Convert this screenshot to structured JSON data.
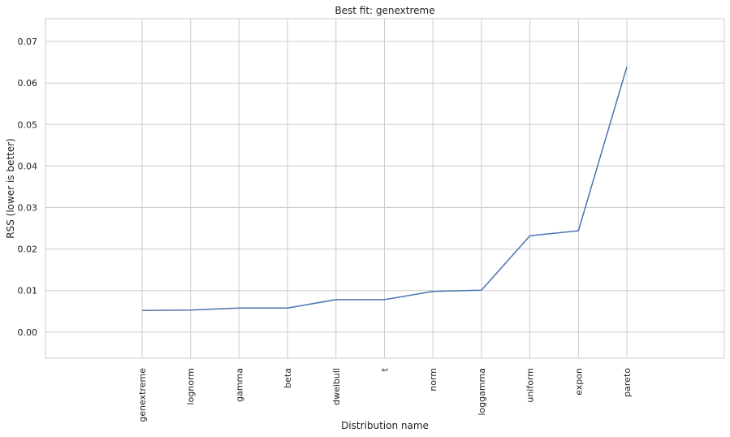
{
  "chart_data": {
    "type": "line",
    "title": "Best fit: genextreme",
    "xlabel": "Distribution name",
    "ylabel": "RSS (lower is better)",
    "categories": [
      "genextreme",
      "lognorm",
      "gamma",
      "beta",
      "dweibull",
      "t",
      "norm",
      "loggamma",
      "uniform",
      "expon",
      "pareto"
    ],
    "values": [
      0.0052,
      0.0053,
      0.0058,
      0.0058,
      0.0078,
      0.0078,
      0.0098,
      0.0101,
      0.0232,
      0.0244,
      0.0639
    ],
    "yticks": [
      "0.00",
      "0.01",
      "0.02",
      "0.03",
      "0.04",
      "0.05",
      "0.06",
      "0.07"
    ],
    "ylim": [
      -0.0063,
      0.0755
    ],
    "grid": true,
    "color": "#4c72b0"
  }
}
